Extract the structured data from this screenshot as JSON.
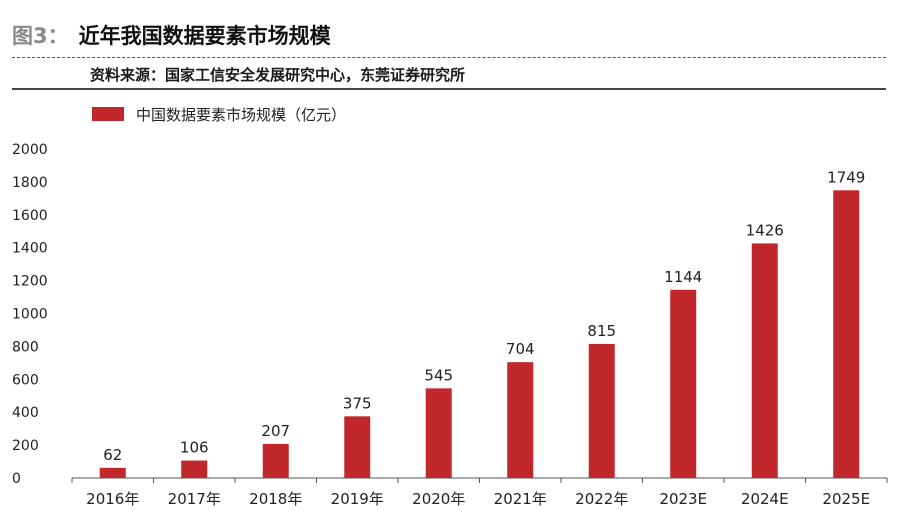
{
  "figure": {
    "label": "图3：",
    "title": "近年我国数据要素市场规模",
    "source": "资料来源：国家工信安全发展研究中心，东莞证券研究所"
  },
  "colors": {
    "bar": "#c0282b",
    "axis": "#555555",
    "text": "#222222"
  },
  "chart_data": {
    "type": "bar",
    "categories": [
      "2016年",
      "2017年",
      "2018年",
      "2019年",
      "2020年",
      "2021年",
      "2022年",
      "2023E",
      "2024E",
      "2025E"
    ],
    "series": [
      {
        "name": "中国数据要素市场规模（亿元）",
        "values": [
          62,
          106,
          207,
          375,
          545,
          704,
          815,
          1144,
          1426,
          1749
        ]
      }
    ],
    "title": "",
    "xlabel": "",
    "ylabel": "",
    "ylim": [
      0,
      2000
    ],
    "yticks": [
      0,
      200,
      400,
      600,
      800,
      1000,
      1200,
      1400,
      1600,
      1800,
      2000
    ],
    "grid": false,
    "legend": "top-left",
    "data_labels": true
  }
}
